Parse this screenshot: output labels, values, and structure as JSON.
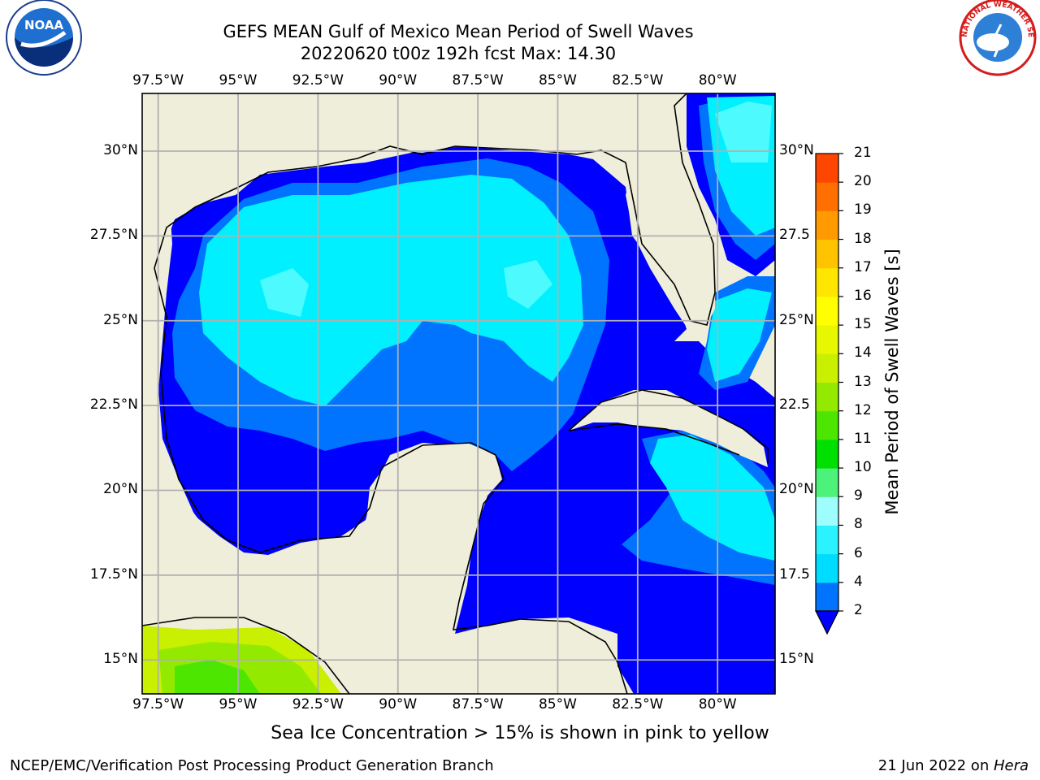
{
  "header": {
    "title": "GEFS MEAN Gulf of Mexico Mean Period of Swell Waves",
    "subtitle": "20220620 t00z 192h fcst   Max: 14.30"
  },
  "logos": {
    "left": {
      "name": "noaa-logo",
      "text": "NOAA"
    },
    "right": {
      "name": "nws-logo",
      "text": "NATIONAL WEATHER SERVICE"
    }
  },
  "map": {
    "lon_labels": [
      "97.5°W",
      "95°W",
      "92.5°W",
      "90°W",
      "87.5°W",
      "85°W",
      "82.5°W",
      "80°W"
    ],
    "lon_values": [
      -97.5,
      -95,
      -92.5,
      -90,
      -87.5,
      -85,
      -82.5,
      -80
    ],
    "lat_labels_left": [
      "30°N",
      "27.5°N",
      "25°N",
      "22.5°N",
      "20°N",
      "17.5°N",
      "15°N"
    ],
    "lat_labels_right": [
      "30°N",
      "27.5",
      "25°N",
      "22.5",
      "20°N",
      "17.5",
      "15°N"
    ],
    "lat_values": [
      30,
      27.5,
      25,
      22.5,
      20,
      17.5,
      15
    ],
    "extent": {
      "lon_min": -98,
      "lon_max": -78.2,
      "lat_min": 14,
      "lat_max": 31.7
    },
    "colors": {
      "land": "#efeedb",
      "grid": "#b0b0b0",
      "coast": "#000000"
    }
  },
  "colorbar": {
    "label": "Mean Period of Swell Waves [s]",
    "ticks": [
      "2",
      "4",
      "6",
      "8",
      "9",
      "10",
      "11",
      "12",
      "13",
      "14",
      "15",
      "16",
      "17",
      "18",
      "19",
      "20",
      "21"
    ],
    "colors": [
      "#0073ff",
      "#00dcff",
      "#2bf2ff",
      "#9efdfd",
      "#4df27a",
      "#00e000",
      "#4ce600",
      "#93ea00",
      "#c8f000",
      "#e6f700",
      "#ffff00",
      "#ffe600",
      "#ffc300",
      "#ff9a00",
      "#ff7000",
      "#ff4600",
      "#ff1e00",
      "#ff0000"
    ],
    "under_color": "#0000ff"
  },
  "footer": {
    "sea_ice_note": "Sea Ice Concentration > 15% is shown in pink to yellow",
    "credit": "NCEP/EMC/Verification Post Processing Product Generation Branch",
    "date": "21 Jun 2022 on ",
    "machine": "Hera"
  }
}
